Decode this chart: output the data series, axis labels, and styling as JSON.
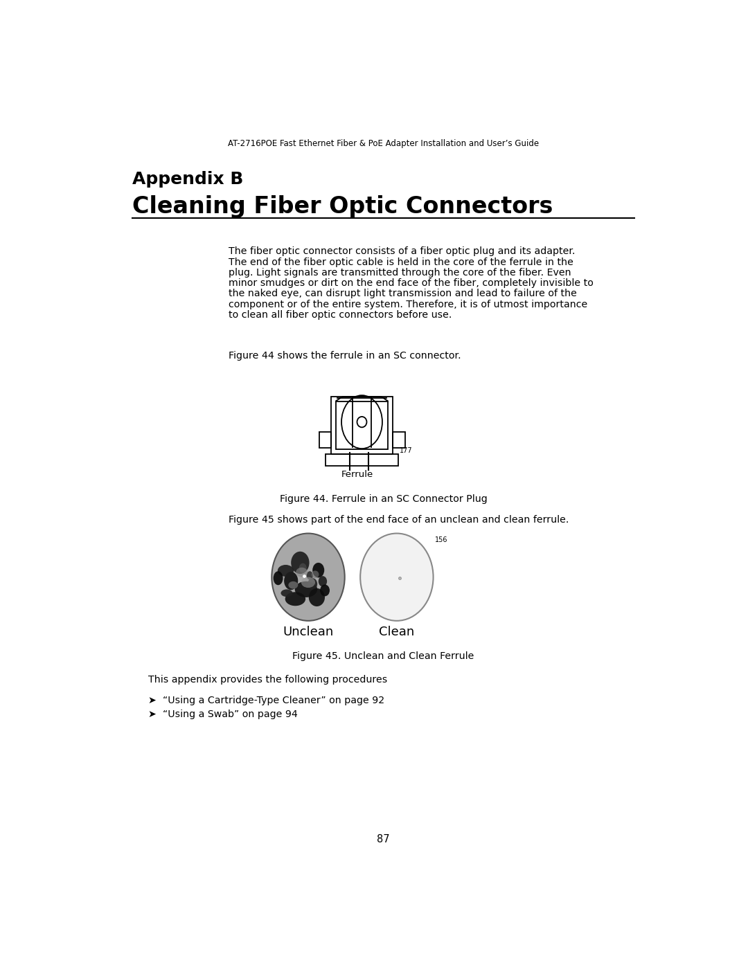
{
  "page_header": "AT-2716POE Fast Ethernet Fiber & PoE Adapter Installation and User’s Guide",
  "appendix_label": "Appendix B",
  "section_title": "Cleaning Fiber Optic Connectors",
  "body_text": "The fiber optic connector consists of a fiber optic plug and its adapter. The end of the fiber optic cable is held in the core of the ferrule in the plug. Light signals are transmitted through the core of the fiber. Even minor smudges or dirt on the end face of the fiber, completely invisible to the naked eye, can disrupt light transmission and lead to failure of the component or of the entire system. Therefore, it is of utmost importance to clean all fiber optic connectors before use.",
  "fig44_caption_prefix": "Figure 44 shows the ferrule in an SC connector.",
  "fig44_label": "Figure 44. Ferrule in an SC Connector Plug",
  "fig44_num": "177",
  "fig45_intro": "Figure 45 shows part of the end face of an unclean and clean ferrule.",
  "fig45_label": "Figure 45. Unclean and Clean Ferrule",
  "fig45_num": "156",
  "unclean_label": "Unclean",
  "clean_label": "Clean",
  "appendix_text": "This appendix provides the following procedures",
  "bullet1": "“Using a Cartridge-Type Cleaner” on page 92",
  "bullet2": "“Using a Swab” on page 94",
  "page_number": "87",
  "bg_color": "#ffffff",
  "text_color": "#000000"
}
